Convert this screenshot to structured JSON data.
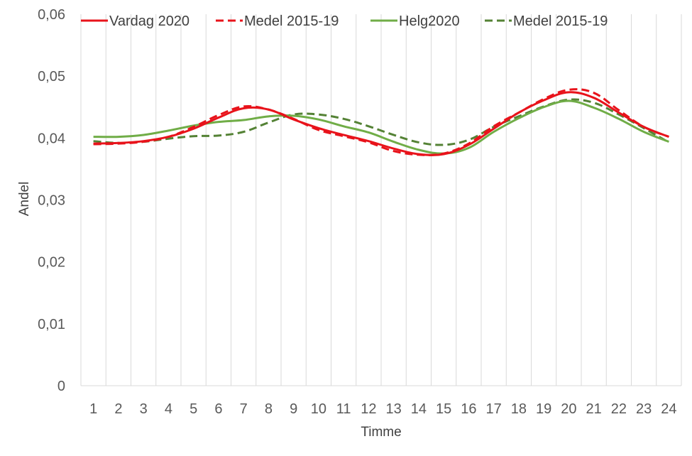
{
  "chart_data": {
    "type": "line",
    "title": "",
    "xlabel": "Timme",
    "ylabel": "Andel",
    "x": [
      1,
      2,
      3,
      4,
      5,
      6,
      7,
      8,
      9,
      10,
      11,
      12,
      13,
      14,
      15,
      16,
      17,
      18,
      19,
      20,
      21,
      22,
      23,
      24
    ],
    "x_tick_labels": [
      "1",
      "2",
      "3",
      "4",
      "5",
      "6",
      "7",
      "8",
      "9",
      "10",
      "11",
      "12",
      "13",
      "14",
      "15",
      "16",
      "17",
      "18",
      "19",
      "20",
      "21",
      "22",
      "23",
      "24"
    ],
    "ylim": [
      0,
      0.06
    ],
    "y_ticks": [
      0,
      0.01,
      0.02,
      0.03,
      0.04,
      0.05,
      0.06
    ],
    "y_tick_labels": [
      "0",
      "0,01",
      "0,02",
      "0,03",
      "0,04",
      "0,05",
      "0,06"
    ],
    "grid": "vertical",
    "legend_position": "top",
    "series": [
      {
        "name": "Vardag 2020",
        "color": "#e8131b",
        "dash": "solid",
        "values": [
          0.0391,
          0.0392,
          0.0395,
          0.0402,
          0.0415,
          0.0433,
          0.0448,
          0.0446,
          0.043,
          0.0416,
          0.0405,
          0.0395,
          0.0383,
          0.0374,
          0.0374,
          0.0389,
          0.0415,
          0.0441,
          0.0461,
          0.0474,
          0.0465,
          0.0441,
          0.0418,
          0.0402
        ]
      },
      {
        "name": "Medel 2015-19",
        "color": "#e8131b",
        "dash": "dashed",
        "values": [
          0.039,
          0.0391,
          0.0394,
          0.0402,
          0.0418,
          0.0437,
          0.0451,
          0.0446,
          0.0431,
          0.0413,
          0.0403,
          0.0393,
          0.0379,
          0.0373,
          0.0375,
          0.0391,
          0.0419,
          0.0441,
          0.0463,
          0.0478,
          0.0473,
          0.0445,
          0.0418,
          0.0402
        ]
      },
      {
        "name": "Helg2020",
        "color": "#70ad47",
        "dash": "solid",
        "values": [
          0.0402,
          0.0402,
          0.0405,
          0.0412,
          0.042,
          0.0426,
          0.0429,
          0.0435,
          0.0436,
          0.043,
          0.0419,
          0.0409,
          0.0394,
          0.0381,
          0.0375,
          0.0384,
          0.041,
          0.0432,
          0.045,
          0.046,
          0.0449,
          0.0431,
          0.041,
          0.0394
        ]
      },
      {
        "name": "Medel 2015-19",
        "color": "#548235",
        "dash": "dashed",
        "values": [
          0.0395,
          0.0392,
          0.0394,
          0.0399,
          0.0403,
          0.0404,
          0.041,
          0.0425,
          0.0438,
          0.0438,
          0.0431,
          0.0419,
          0.0405,
          0.0393,
          0.0389,
          0.0397,
          0.0418,
          0.0435,
          0.0451,
          0.0462,
          0.0457,
          0.0438,
          0.0416,
          0.0393
        ]
      }
    ]
  }
}
